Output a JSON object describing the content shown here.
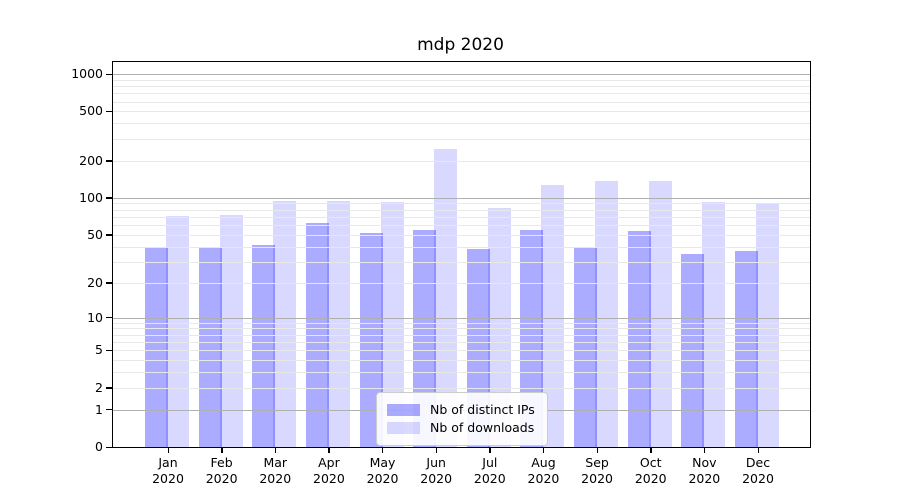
{
  "figure": {
    "title": "mdp 2020"
  },
  "chart_data": {
    "type": "bar",
    "title": "mdp 2020",
    "categories": [
      "Jan 2020",
      "Feb 2020",
      "Mar 2020",
      "Apr 2020",
      "May 2020",
      "Jun 2020",
      "Jul 2020",
      "Aug 2020",
      "Sep 2020",
      "Oct 2020",
      "Nov 2020",
      "Dec 2020"
    ],
    "series": [
      {
        "name": "Nb of distinct IPs",
        "color": "rgba(0,0,255,0.33)",
        "values": [
          40,
          40,
          41,
          62,
          52,
          55,
          38,
          55,
          40,
          54,
          35,
          37
        ]
      },
      {
        "name": "Nb of downloads",
        "color": "rgba(0,0,255,0.15)",
        "values": [
          71,
          72,
          94,
          94,
          92,
          250,
          83,
          127,
          137,
          136,
          92,
          91
        ]
      }
    ],
    "xlabel": "",
    "ylabel": "",
    "yscale": "log1p",
    "yticks": [
      0,
      1,
      2,
      5,
      10,
      20,
      50,
      100,
      200,
      500,
      1000
    ],
    "minor_yticks": [
      3,
      4,
      6,
      7,
      8,
      9,
      30,
      40,
      60,
      70,
      80,
      90,
      300,
      400,
      600,
      700,
      800,
      900
    ],
    "ylim": [
      0,
      1100
    ],
    "grid": true,
    "legend_position": "lower-center"
  },
  "colors": {
    "grid_major": "#b0b0b0",
    "grid_minor": "#e8e8e8",
    "axis": "#000000",
    "legend_border": "#cccccc"
  }
}
